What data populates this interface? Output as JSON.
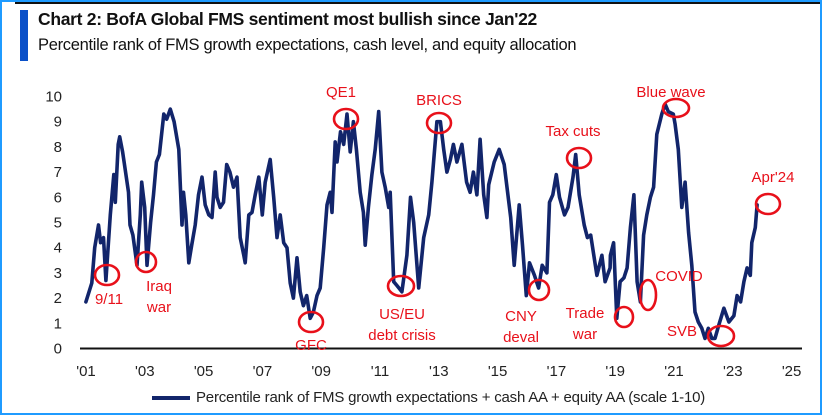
{
  "header": {
    "title": "Chart 2: BofA Global FMS sentiment most bullish since Jan'22",
    "subtitle": "Percentile rank of FMS growth expectations, cash level, and equity allocation"
  },
  "chart_data": {
    "type": "line",
    "title": "Chart 2: BofA Global FMS sentiment most bullish since Jan'22",
    "subtitle": "Percentile rank of FMS growth expectations, cash level, and equity allocation",
    "xlabel": "",
    "ylabel": "",
    "ylim": [
      0,
      10
    ],
    "xlim": [
      2001,
      2025
    ],
    "yticks": [
      "0",
      "1",
      "2",
      "3",
      "4",
      "5",
      "6",
      "7",
      "8",
      "9",
      "10"
    ],
    "xticks": [
      {
        "year": 2001,
        "label": "'01"
      },
      {
        "year": 2003,
        "label": "'03"
      },
      {
        "year": 2005,
        "label": "'05"
      },
      {
        "year": 2007,
        "label": "'07"
      },
      {
        "year": 2009,
        "label": "'09"
      },
      {
        "year": 2011,
        "label": "'11"
      },
      {
        "year": 2013,
        "label": "'13"
      },
      {
        "year": 2015,
        "label": "'15"
      },
      {
        "year": 2017,
        "label": "'17"
      },
      {
        "year": 2019,
        "label": "'19"
      },
      {
        "year": 2021,
        "label": "'21"
      },
      {
        "year": 2023,
        "label": "'23"
      },
      {
        "year": 2025,
        "label": "'25"
      }
    ],
    "grid": false,
    "legend_position": "bottom",
    "colors": {
      "line": "#12256b",
      "annotation": "#e8101a"
    },
    "series": [
      {
        "name": "Percentile rank of FMS growth expectations + cash AA + equity AA (scale 1-10)",
        "x": [
          2001.2,
          2001.4,
          2001.5,
          2001.63,
          2001.7,
          2001.8,
          2001.88,
          2002.03,
          2002.15,
          2002.2,
          2002.3,
          2002.35,
          2002.45,
          2002.5,
          2002.65,
          2002.7,
          2002.8,
          2002.94,
          2003.05,
          2003.1,
          2003.2,
          2003.28,
          2003.4,
          2003.5,
          2003.6,
          2003.7,
          2003.85,
          2003.95,
          2004.07,
          2004.2,
          2004.36,
          2004.47,
          2004.52,
          2004.6,
          2004.7,
          2004.8,
          2004.92,
          2005.03,
          2005.15,
          2005.26,
          2005.38,
          2005.49,
          2005.6,
          2005.66,
          2005.77,
          2005.88,
          2005.99,
          2006.1,
          2006.22,
          2006.34,
          2006.45,
          2006.57,
          2006.62,
          2006.74,
          2006.85,
          2006.96,
          2007.08,
          2007.2,
          2007.3,
          2007.47,
          2007.59,
          2007.7,
          2007.81,
          2007.93,
          2008.04,
          2008.15,
          2008.26,
          2008.38,
          2008.49,
          2008.6,
          2008.71,
          2008.83,
          2008.94,
          2009.06,
          2009.17,
          2009.29,
          2009.4,
          2009.51,
          2009.57,
          2009.68,
          2009.74,
          2009.86,
          2009.97,
          2010.08,
          2010.19,
          2010.3,
          2010.4,
          2010.53,
          2010.64,
          2010.7,
          2010.81,
          2010.93,
          2011.04,
          2011.16,
          2011.27,
          2011.38,
          2011.5,
          2011.55,
          2011.67,
          2011.78,
          2011.95,
          2012.12,
          2012.24,
          2012.35,
          2012.52,
          2012.69,
          2012.86,
          2012.97,
          2013.14,
          2013.26,
          2013.37,
          2013.48,
          2013.6,
          2013.7,
          2013.82,
          2013.99,
          2014.15,
          2014.27,
          2014.38,
          2014.5,
          2014.61,
          2014.73,
          2014.84,
          2014.9,
          2015.09,
          2015.26,
          2015.43,
          2015.65,
          2015.77,
          2015.94,
          2016.05,
          2016.18,
          2016.29,
          2016.46,
          2016.6,
          2016.72,
          2016.88,
          2016.97,
          2017.08,
          2017.2,
          2017.31,
          2017.48,
          2017.6,
          2017.77,
          2017.86,
          2017.98,
          2018.15,
          2018.26,
          2018.37,
          2018.58,
          2018.75,
          2018.86,
          2019.03,
          2019.04,
          2019.15,
          2019.26,
          2019.37,
          2019.5,
          2019.61,
          2019.72,
          2019.84,
          2019.95,
          2020.06,
          2020.17,
          2020.28,
          2020.4,
          2020.51,
          2020.62,
          2020.79,
          2020.9,
          2021.01,
          2021.18,
          2021.24,
          2021.35,
          2021.47,
          2021.58,
          2021.7,
          2021.81,
          2021.92,
          2022.03,
          2022.15,
          2022.26,
          2022.37,
          2022.49,
          2022.6,
          2022.72,
          2022.9,
          2023.07,
          2023.24,
          2023.35,
          2023.47,
          2023.58,
          2023.69,
          2023.8,
          2023.85,
          2023.97,
          2024.03
        ],
        "y": [
          1.85,
          2.6,
          4.0,
          4.9,
          4.2,
          4.4,
          2.7,
          5.3,
          6.9,
          5.8,
          8.1,
          8.4,
          7.8,
          7.4,
          6.2,
          4.9,
          4.5,
          3.3,
          5.3,
          6.6,
          5.6,
          3.3,
          5.0,
          6.1,
          7.4,
          7.7,
          9.3,
          9.1,
          9.5,
          9.0,
          7.9,
          4.9,
          6.2,
          5.3,
          3.4,
          4.1,
          4.9,
          6.1,
          6.8,
          5.7,
          5.3,
          5.2,
          7.0,
          6.0,
          5.6,
          5.8,
          7.3,
          7.0,
          6.4,
          6.8,
          4.4,
          3.7,
          3.4,
          5.3,
          5.4,
          6.1,
          6.8,
          5.3,
          6.6,
          7.5,
          6.0,
          4.4,
          5.3,
          4.2,
          4.0,
          2.6,
          2.0,
          3.6,
          2.25,
          1.7,
          2.1,
          1.2,
          1.45,
          2.1,
          2.4,
          4.0,
          5.7,
          6.2,
          5.4,
          8.2,
          7.4,
          8.6,
          8.1,
          9.3,
          7.8,
          9.0,
          7.9,
          6.2,
          5.4,
          4.1,
          5.6,
          6.9,
          7.9,
          9.4,
          7.0,
          6.4,
          5.6,
          6.2,
          2.65,
          2.5,
          2.25,
          3.7,
          6.0,
          5.0,
          2.4,
          4.4,
          5.3,
          6.6,
          9.0,
          9.0,
          7.9,
          7.0,
          7.5,
          8.1,
          7.4,
          8.1,
          6.6,
          6.2,
          7.0,
          6.1,
          8.3,
          6.1,
          5.2,
          6.5,
          7.4,
          7.9,
          7.3,
          5.2,
          3.3,
          5.7,
          4.1,
          2.1,
          3.4,
          2.9,
          2.4,
          3.3,
          3.0,
          5.8,
          6.1,
          6.9,
          6.0,
          5.3,
          5.6,
          6.8,
          7.7,
          6.1,
          4.9,
          4.4,
          4.5,
          2.9,
          3.7,
          2.65,
          3.2,
          3.7,
          4.2,
          1.2,
          2.65,
          2.8,
          3.2,
          4.8,
          6.1,
          2.65,
          1.85,
          4.5,
          5.3,
          6.0,
          6.4,
          8.5,
          9.3,
          9.7,
          9.4,
          9.3,
          8.9,
          7.9,
          5.6,
          6.6,
          4.6,
          3.3,
          1.45,
          1.05,
          0.8,
          0.4,
          0.8,
          0.4,
          0.4,
          0.9,
          1.6,
          1.05,
          1.3,
          2.1,
          1.85,
          2.65,
          3.2,
          2.9,
          4.2,
          4.8,
          5.7
        ]
      }
    ],
    "annotations": [
      {
        "lines": [
          "9/11"
        ]
      },
      {
        "lines": [
          "Iraq",
          "war"
        ]
      },
      {
        "lines": [
          "GFC"
        ]
      },
      {
        "lines": [
          "QE1"
        ]
      },
      {
        "lines": [
          "US/EU",
          "debt crisis"
        ]
      },
      {
        "lines": [
          "BRICS"
        ]
      },
      {
        "lines": [
          "CNY",
          "deval"
        ]
      },
      {
        "lines": [
          "Tax cuts"
        ]
      },
      {
        "lines": [
          "Trade",
          "war"
        ]
      },
      {
        "lines": [
          "COVID"
        ]
      },
      {
        "lines": [
          "Blue wave"
        ]
      },
      {
        "lines": [
          "SVB"
        ]
      },
      {
        "lines": [
          "Apr'24"
        ]
      }
    ]
  },
  "legend": {
    "label": "Percentile rank of FMS growth expectations + cash AA + equity AA (scale 1-10)"
  }
}
